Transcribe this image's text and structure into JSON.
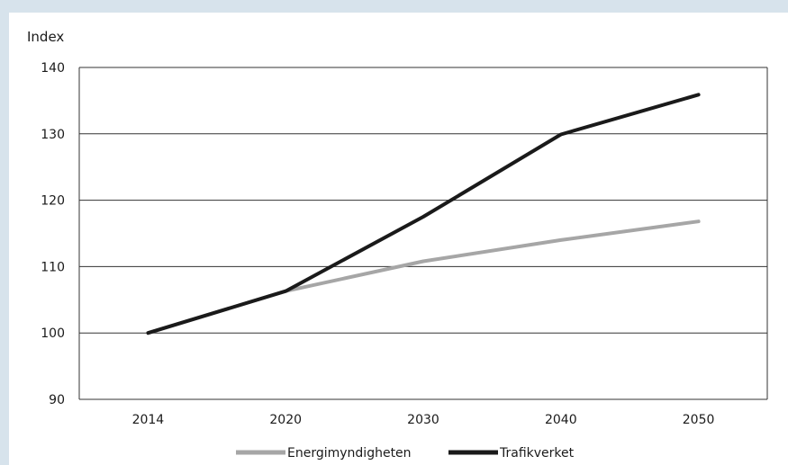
{
  "chart_data": {
    "type": "line",
    "title": "",
    "xlabel": "",
    "ylabel": "Index",
    "categories": [
      "2014",
      "2020",
      "2030",
      "2040",
      "2050"
    ],
    "ylim": [
      90,
      140
    ],
    "yticks": [
      90,
      100,
      110,
      120,
      130,
      140
    ],
    "grid": true,
    "legend_position": "bottom",
    "series": [
      {
        "name": "Energimyndigheten",
        "color": "#a6a6a6",
        "values": [
          100,
          106.3,
          110.8,
          114,
          116.8
        ]
      },
      {
        "name": "Trafikverket",
        "color": "#1a1a1a",
        "values": [
          100,
          106.3,
          117.5,
          129.9,
          135.9
        ]
      }
    ]
  }
}
